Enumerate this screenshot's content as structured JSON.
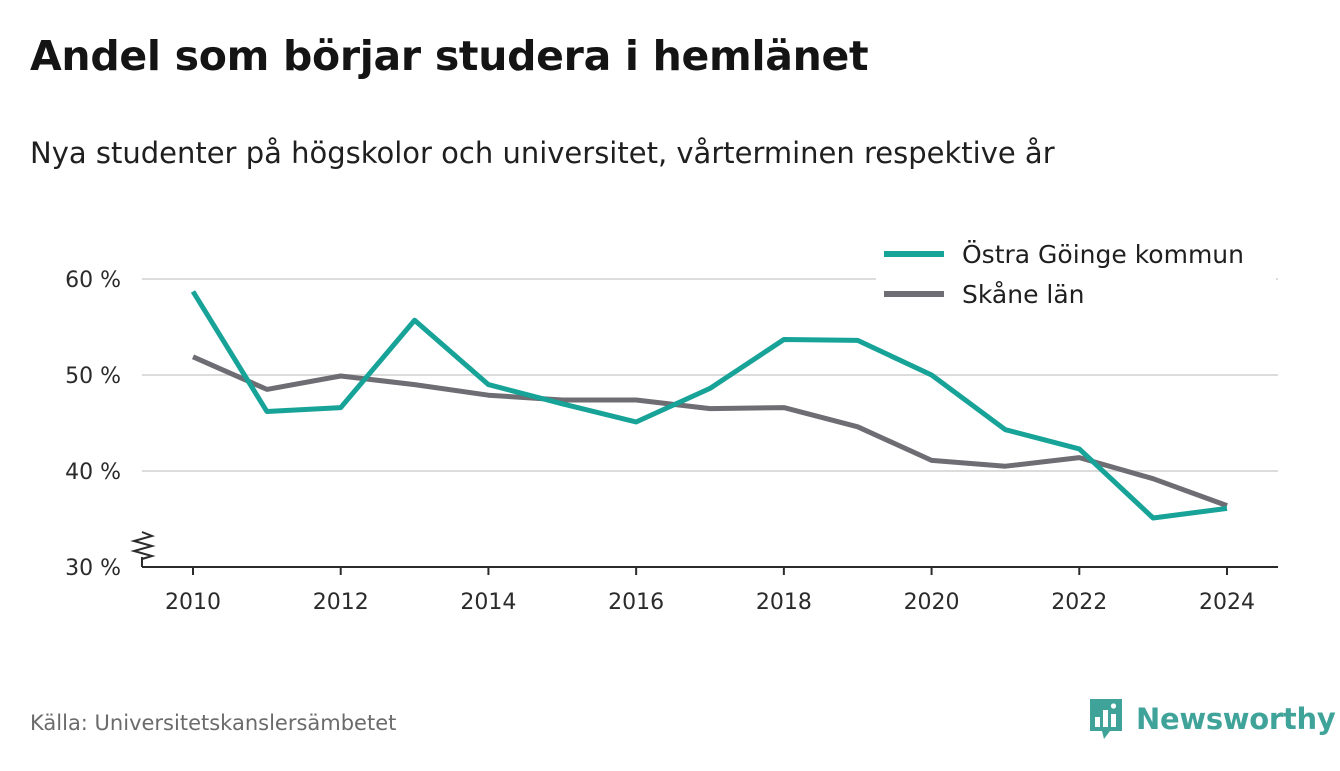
{
  "header": {
    "title": "Andel som börjar studera i hemlänet",
    "subtitle": "Nya studenter på högskolor och universitet, vårterminen respektive år"
  },
  "footer": {
    "source": "Källa: Universitetskanslersämbetet",
    "brand": "Newsworthy",
    "brand_icon": "bar-chart-speech-bubble-icon"
  },
  "colors": {
    "series_1": "#17a398",
    "series_2": "#6e6d73",
    "grid": "#dcdcdc",
    "axis": "#2b2b2b",
    "brand": "#3fa39a"
  },
  "chart_data": {
    "type": "line",
    "x": [
      2010,
      2011,
      2012,
      2013,
      2014,
      2015,
      2016,
      2017,
      2018,
      2019,
      2020,
      2021,
      2022,
      2023,
      2024
    ],
    "x_ticks": [
      "2010",
      "2012",
      "2014",
      "2016",
      "2018",
      "2020",
      "2022",
      "2024"
    ],
    "y_ticks": [
      "30 %",
      "40 %",
      "50 %",
      "60 %"
    ],
    "ylim": [
      30,
      60
    ],
    "grid": true,
    "y_axis_break": true,
    "legend_position": "top-right",
    "series": [
      {
        "name": "Östra Göinge kommun",
        "values": [
          58.7,
          46.2,
          46.6,
          55.7,
          49.0,
          47.0,
          45.1,
          48.6,
          53.7,
          53.6,
          50.0,
          44.3,
          42.3,
          35.1,
          36.1
        ]
      },
      {
        "name": "Skåne län",
        "values": [
          51.9,
          48.5,
          49.9,
          49.0,
          47.9,
          47.4,
          47.4,
          46.5,
          46.6,
          44.6,
          41.1,
          40.5,
          41.4,
          39.2,
          36.4
        ]
      }
    ]
  }
}
